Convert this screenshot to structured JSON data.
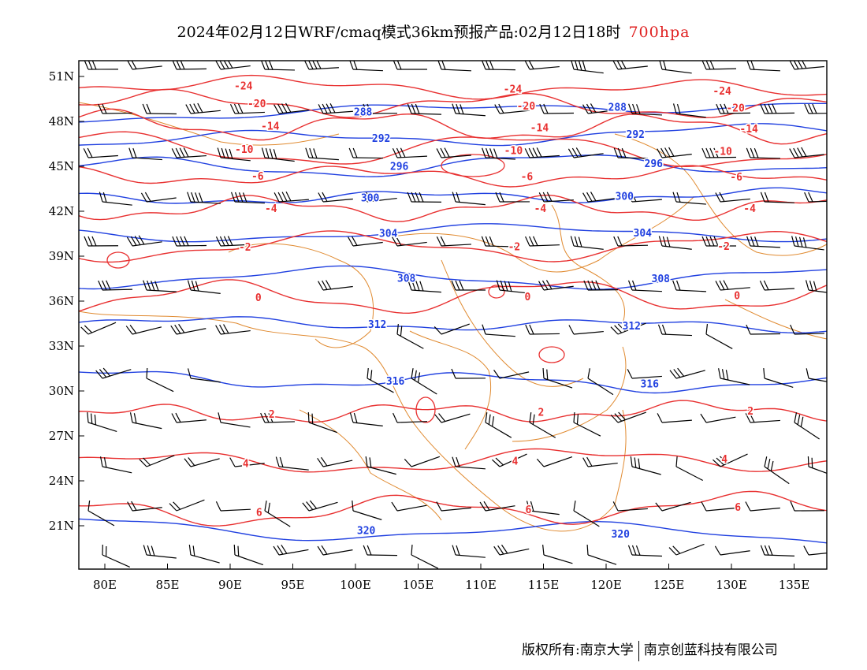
{
  "title": {
    "main": "2024年02月12日WRF/cmaq模式36km预报产品:02月12日18时",
    "level": "700hpa"
  },
  "axes": {
    "lat_labels": [
      "51N",
      "48N",
      "45N",
      "42N",
      "39N",
      "36N",
      "33N",
      "30N",
      "27N",
      "24N",
      "21N"
    ],
    "lon_labels": [
      "80E",
      "85E",
      "90E",
      "95E",
      "100E",
      "105E",
      "110E",
      "115E",
      "120E",
      "125E",
      "130E",
      "135E"
    ]
  },
  "colors": {
    "temperature": "#e83030",
    "geopotential": "#2040e0",
    "boundary": "#e08a30",
    "wind": "#000000"
  },
  "height_contours": [
    {
      "label": "288",
      "lat": 48.3
    },
    {
      "label": "292",
      "lat": 46.6
    },
    {
      "label": "296",
      "lat": 44.8
    },
    {
      "label": "300",
      "lat": 42.8
    },
    {
      "label": "304",
      "lat": 40.5
    },
    {
      "label": "308",
      "lat": 37.6
    },
    {
      "label": "312",
      "lat": 34.6
    },
    {
      "label": "316",
      "lat": 30.9
    },
    {
      "label": "320",
      "lat": 21.0
    }
  ],
  "temp_contours": [
    {
      "label": "-24",
      "lat": 50.5
    },
    {
      "label": "-20",
      "lat": 49.3
    },
    {
      "label": "-14",
      "lat": 47.8
    },
    {
      "label": "-10",
      "lat": 46.2
    },
    {
      "label": "-6",
      "lat": 44.4
    },
    {
      "label": "-4",
      "lat": 42.2
    },
    {
      "label": "-2",
      "lat": 39.6
    },
    {
      "label": "0",
      "lat": 36.2
    },
    {
      "label": "2",
      "lat": 28.4
    },
    {
      "label": "4",
      "lat": 25.1
    },
    {
      "label": "6",
      "lat": 21.8
    }
  ],
  "footer": {
    "left": "版权所有:南京大学",
    "right": "南京创蓝科技有限公司"
  }
}
